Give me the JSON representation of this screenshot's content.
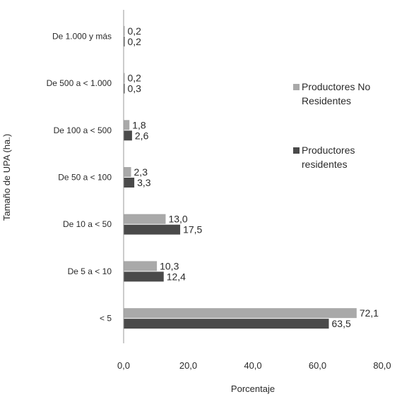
{
  "chart_data": {
    "type": "bar",
    "orientation": "horizontal",
    "categories": [
      "De 1.000 y más",
      "De 500 a < 1.000",
      "De 100 a < 500",
      "De 50 a < 100",
      "De 10 a < 50",
      "De 5 a < 10",
      "< 5"
    ],
    "series": [
      {
        "name": "Productores No Residentes",
        "name_lines": [
          "Productores No",
          "Residentes"
        ],
        "color": "#a9a9a9",
        "values": [
          0.2,
          0.2,
          1.8,
          2.3,
          13.0,
          10.3,
          72.1
        ],
        "labels": [
          "0,2",
          "0,2",
          "1,8",
          "2,3",
          "13,0",
          "10,3",
          "72,1"
        ]
      },
      {
        "name": "Productores residentes",
        "name_lines": [
          "Productores",
          "residentes"
        ],
        "color": "#4a4a4a",
        "values": [
          0.2,
          0.3,
          2.6,
          3.3,
          17.5,
          12.4,
          63.5
        ],
        "labels": [
          "0,2",
          "0,3",
          "2,6",
          "3,3",
          "17,5",
          "12,4",
          "63,5"
        ]
      }
    ],
    "xlabel": "Porcentaje",
    "ylabel": "Tamaño de UPA (ha.)",
    "xlim": [
      0,
      80
    ],
    "xticks": [
      0,
      20,
      40,
      60,
      80
    ],
    "xtick_labels": [
      "0,0",
      "20,0",
      "40,0",
      "60,0",
      "80,0"
    ],
    "grid": false,
    "legend_position": "right"
  }
}
